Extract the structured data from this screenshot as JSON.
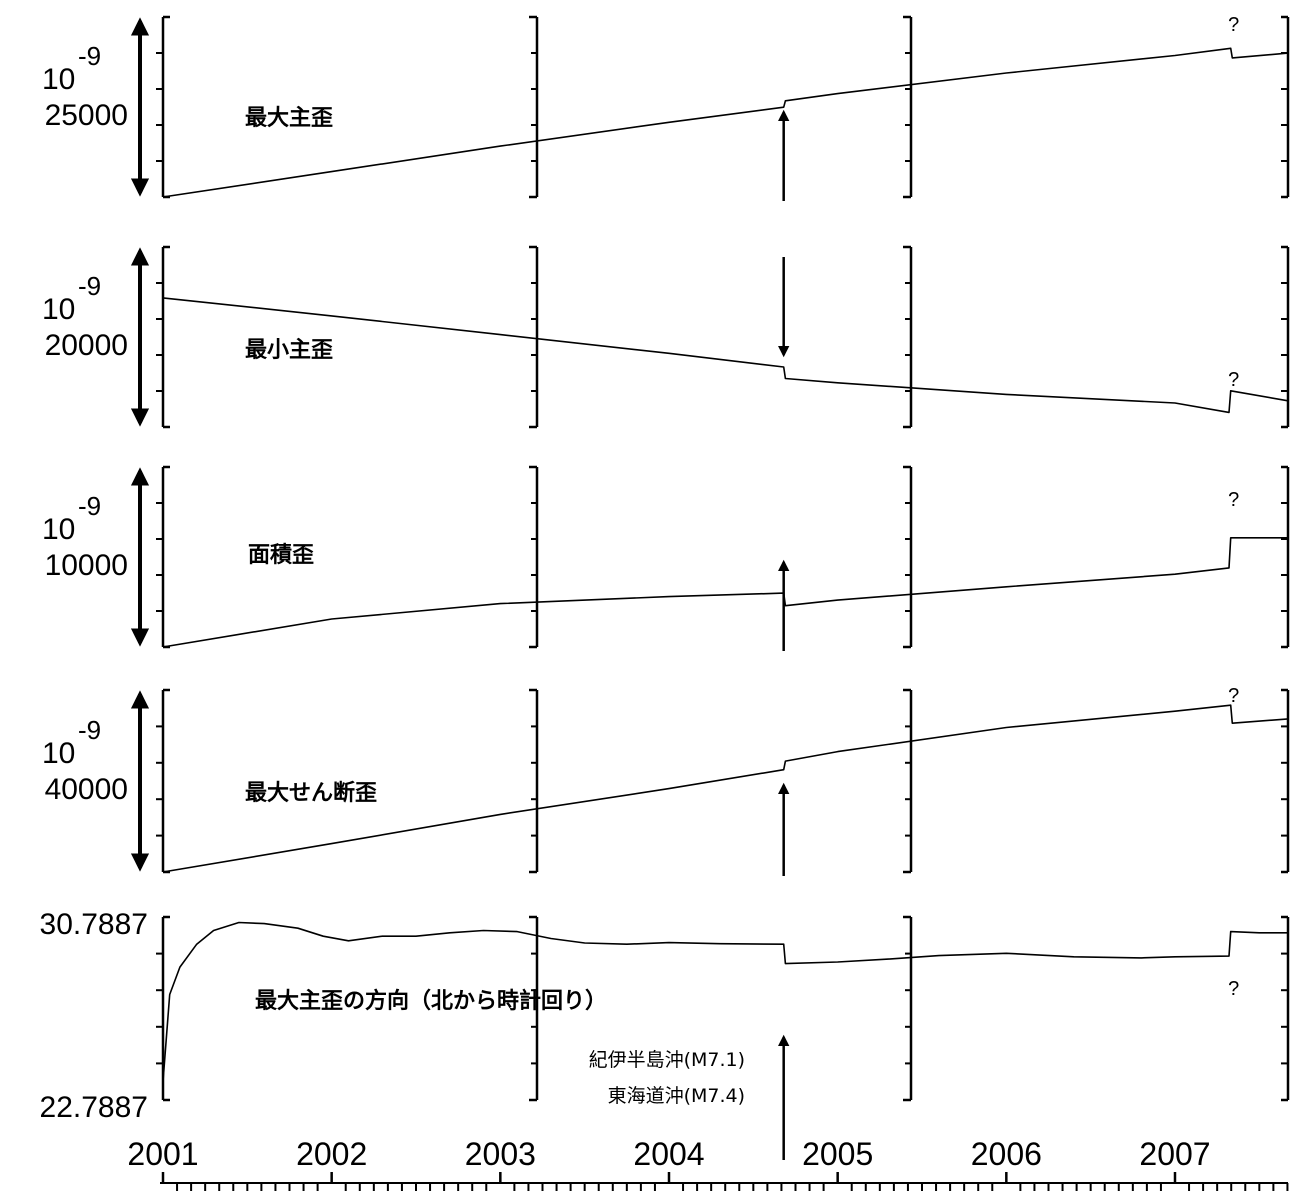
{
  "chart_data": {
    "type": "line",
    "x_axis": {
      "tick_labels": [
        "2001",
        "2002",
        "2003",
        "2004",
        "2005",
        "2006",
        "2007"
      ],
      "xlim": [
        2001.0,
        2007.67
      ],
      "minor_ticks": "monthly"
    },
    "event": {
      "time": 2004.68,
      "labels": [
        "紀伊半島沖(M7.1)",
        "東海道沖(M7.4)"
      ]
    },
    "question_mark": "?",
    "unknown_step_time": 2007.33,
    "panels": [
      {
        "label": "最大主歪",
        "scale_value": "25000",
        "scale_unit": "10",
        "scale_exponent": "-9",
        "arrow_direction": "up",
        "question_position": "above",
        "ylim": [
          0,
          1
        ],
        "x": [
          2001.0,
          2002.0,
          2003.0,
          2004.0,
          2004.68,
          2004.69,
          2005.0,
          2006.0,
          2007.0,
          2007.33,
          2007.34,
          2007.67
        ],
        "y": [
          0.0,
          0.16,
          0.32,
          0.47,
          0.565,
          0.605,
          0.65,
          0.78,
          0.89,
          0.935,
          0.875,
          0.905
        ]
      },
      {
        "label": "最小主歪",
        "scale_value": "20000",
        "scale_unit": "10",
        "scale_exponent": "-9",
        "arrow_direction": "down",
        "question_position": "above",
        "ylim": [
          0,
          1
        ],
        "x": [
          2001.0,
          2002.0,
          2003.0,
          2004.0,
          2004.68,
          2004.69,
          2005.0,
          2006.0,
          2007.0,
          2007.32,
          2007.33,
          2007.67
        ],
        "y": [
          0.855,
          0.73,
          0.6,
          0.47,
          0.375,
          0.295,
          0.265,
          0.185,
          0.125,
          0.06,
          0.21,
          0.14
        ]
      },
      {
        "label": "面積歪",
        "scale_value": "10000",
        "scale_unit": "10",
        "scale_exponent": "-9",
        "arrow_direction": "up",
        "question_position": "above",
        "ylim": [
          0,
          1
        ],
        "x": [
          2001.0,
          2002.0,
          2003.0,
          2004.0,
          2004.68,
          2004.69,
          2005.0,
          2006.0,
          2007.0,
          2007.32,
          2007.33,
          2007.67
        ],
        "y": [
          0.0,
          0.2,
          0.31,
          0.36,
          0.385,
          0.295,
          0.335,
          0.43,
          0.52,
          0.565,
          0.78,
          0.78
        ]
      },
      {
        "label": "最大せん断歪",
        "scale_value": "40000",
        "scale_unit": "10",
        "scale_exponent": "-9",
        "arrow_direction": "up",
        "question_position": "above",
        "ylim": [
          0,
          1
        ],
        "x": [
          2001.0,
          2002.0,
          2003.0,
          2004.0,
          2004.68,
          2004.69,
          2005.0,
          2006.0,
          2007.0,
          2007.33,
          2007.34,
          2007.67
        ],
        "y": [
          0.0,
          0.165,
          0.335,
          0.485,
          0.595,
          0.645,
          0.7,
          0.84,
          0.935,
          0.97,
          0.865,
          0.89
        ]
      },
      {
        "label": "最大主歪の方向（北から時計回り）",
        "ytick_top": "30.7887",
        "ytick_bottom": "22.7887",
        "question_position": "below",
        "ylim": [
          22.7887,
          30.7887
        ],
        "x": [
          2001.0,
          2001.04,
          2001.1,
          2001.2,
          2001.3,
          2001.45,
          2001.6,
          2001.8,
          2001.95,
          2002.1,
          2002.3,
          2002.5,
          2002.7,
          2002.9,
          2003.1,
          2003.3,
          2003.5,
          2003.75,
          2004.0,
          2004.3,
          2004.68,
          2004.69,
          2005.0,
          2005.3,
          2005.6,
          2006.0,
          2006.4,
          2006.8,
          2007.0,
          2007.32,
          2007.33,
          2007.5,
          2007.67
        ],
        "y": [
          23.6,
          27.4,
          28.6,
          29.6,
          30.2,
          30.55,
          30.5,
          30.3,
          29.95,
          29.75,
          29.95,
          29.95,
          30.1,
          30.2,
          30.15,
          29.85,
          29.65,
          29.6,
          29.67,
          29.62,
          29.6,
          28.75,
          28.82,
          28.95,
          29.1,
          29.2,
          29.05,
          29.0,
          29.05,
          29.08,
          30.15,
          30.1,
          30.1
        ]
      }
    ]
  }
}
